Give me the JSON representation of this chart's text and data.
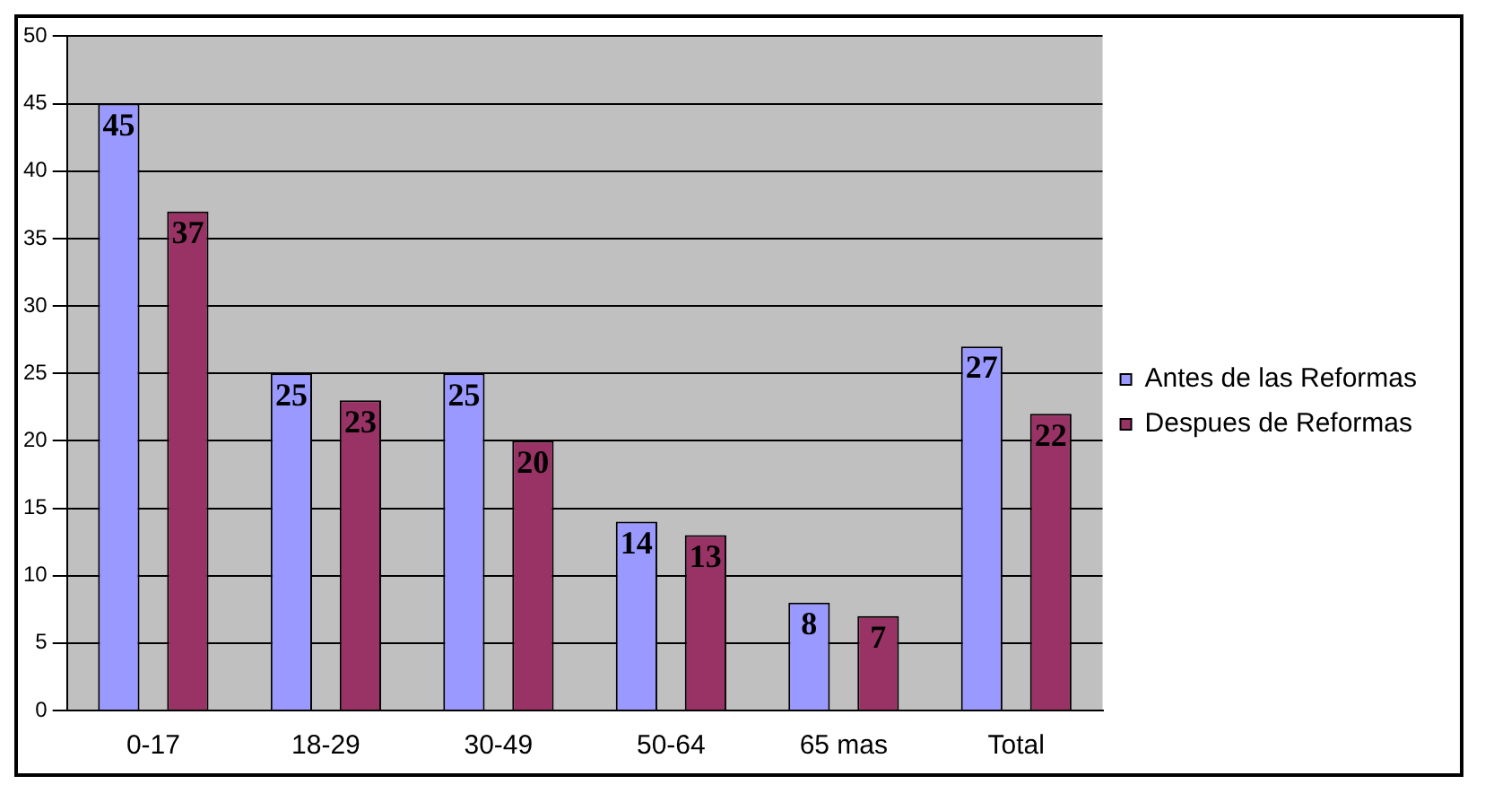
{
  "chart_data": {
    "type": "bar",
    "categories": [
      "0-17",
      "18-29",
      "30-49",
      "50-64",
      "65 mas",
      "Total"
    ],
    "series": [
      {
        "name": "Antes de las Reformas",
        "color": "#9999ff",
        "values": [
          45,
          25,
          25,
          14,
          8,
          27
        ]
      },
      {
        "name": "Despues de Reformas",
        "color": "#993366",
        "values": [
          37,
          23,
          20,
          13,
          7,
          22
        ]
      }
    ],
    "ylim": [
      0,
      50
    ],
    "yticks": [
      0,
      5,
      10,
      15,
      20,
      25,
      30,
      35,
      40,
      45,
      50
    ],
    "grid": "y",
    "legend": "right",
    "data_labels": true
  }
}
